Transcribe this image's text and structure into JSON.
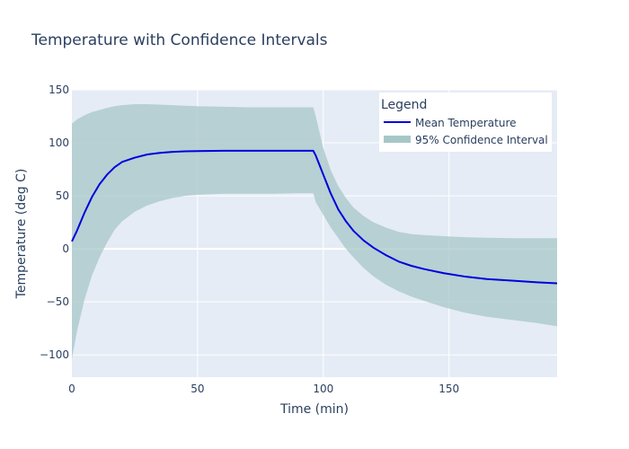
{
  "chart_data": {
    "type": "line",
    "title": "Temperature with Confidence Intervals",
    "xlabel": "Time (min)",
    "ylabel": "Temperature (deg C)",
    "xlim": [
      0,
      193
    ],
    "ylim": [
      -121,
      150
    ],
    "xticks": [
      0,
      50,
      100,
      150
    ],
    "yticks": [
      -100,
      -50,
      0,
      50,
      100,
      150
    ],
    "grid": true,
    "legend": {
      "title": "Legend",
      "position": "top-right",
      "entries": [
        "Mean Temperature",
        "95% Confidence Interval"
      ]
    },
    "colors": {
      "mean_line": "#0000dd",
      "ci_fill": "#a7c7c7",
      "plot_bg": "#e5ecf6",
      "grid": "#ffffff",
      "text": "#2a3f5f"
    },
    "x": [
      0,
      2,
      5,
      8,
      11,
      14,
      17,
      20,
      25,
      30,
      35,
      40,
      45,
      50,
      60,
      70,
      80,
      90,
      96,
      97,
      100,
      103,
      106,
      109,
      112,
      116,
      120,
      125,
      130,
      135,
      140,
      148,
      156,
      165,
      175,
      185,
      193
    ],
    "series": [
      {
        "name": "Mean Temperature",
        "values": [
          7,
          17,
          34,
          49,
          61,
          70,
          77,
          82,
          86,
          89,
          90.5,
          91.5,
          92,
          92.2,
          92.5,
          92.5,
          92.5,
          92.5,
          92.5,
          88,
          70,
          52,
          37,
          26,
          17,
          8,
          1,
          -6,
          -12,
          -16,
          -19,
          -23,
          -26,
          -28.5,
          -30,
          -31.5,
          -32.5
        ]
      },
      {
        "name": "95% Confidence Interval",
        "upper": [
          118,
          122,
          126,
          129,
          131,
          133,
          134.5,
          135.5,
          136.5,
          136.5,
          136,
          135.5,
          135,
          134.5,
          134,
          133.5,
          133.5,
          133.5,
          133.5,
          125,
          95,
          74,
          59,
          48,
          39,
          31,
          25,
          20,
          16,
          14,
          13,
          12,
          11,
          10.5,
          10,
          10,
          10
        ],
        "lower": [
          -104,
          -78,
          -48,
          -25,
          -8,
          6,
          18,
          26,
          35,
          41,
          45,
          48,
          50,
          51,
          52,
          52,
          52,
          52.5,
          52.5,
          44,
          32,
          20,
          10,
          0,
          -8,
          -18,
          -26,
          -34,
          -40,
          -45,
          -49,
          -55,
          -60,
          -64,
          -67,
          -70,
          -73
        ]
      }
    ]
  }
}
